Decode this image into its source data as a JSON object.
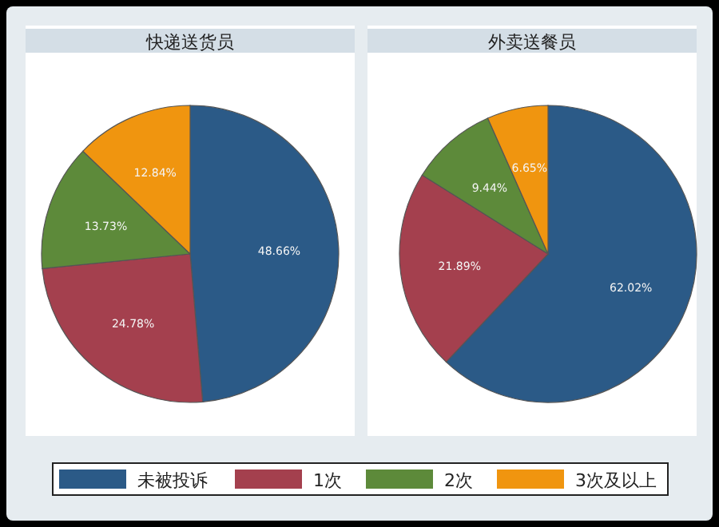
{
  "chart_data": [
    {
      "type": "pie",
      "title": "快递送货员",
      "categories": [
        "未被投诉",
        "1次",
        "2次",
        "3次及以上"
      ],
      "values": [
        48.66,
        24.78,
        13.73,
        12.84
      ],
      "colors": [
        "#2b5a87",
        "#a4404e",
        "#5d8a3a",
        "#f0950f"
      ],
      "value_labels": [
        "48.66%",
        "24.78%",
        "13.73%",
        "12.84%"
      ],
      "legend": "bottom"
    },
    {
      "type": "pie",
      "title": "外卖送餐员",
      "values": [
        62.02,
        21.89,
        9.44,
        6.65
      ],
      "colors": [
        "#2b5a87",
        "#a4404e",
        "#5d8a3a",
        "#f0950f"
      ],
      "value_labels": [
        "62.02%",
        "21.89%",
        "9.44%",
        "6.65%"
      ]
    }
  ]
}
